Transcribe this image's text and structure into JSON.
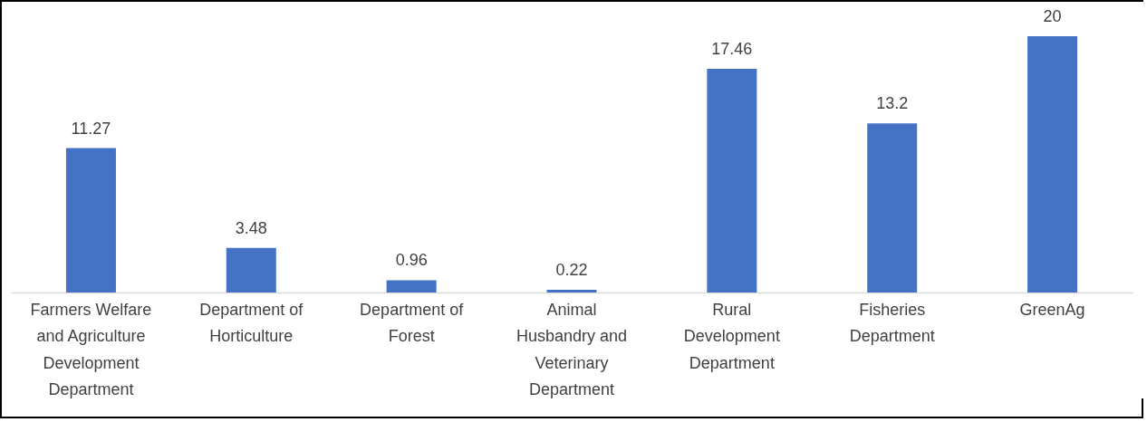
{
  "chart_data": {
    "type": "bar",
    "categories": [
      "Farmers Welfare and Agriculture Development Department",
      "Department of Horticulture",
      "Department of Forest",
      "Animal Husbandry and Veterinary Department",
      "Rural Development Department",
      "Fisheries Department",
      "GreenAg"
    ],
    "values": [
      11.27,
      3.48,
      0.96,
      0.22,
      17.46,
      13.2,
      20
    ],
    "color": "#4472c4",
    "data_labels": true
  }
}
